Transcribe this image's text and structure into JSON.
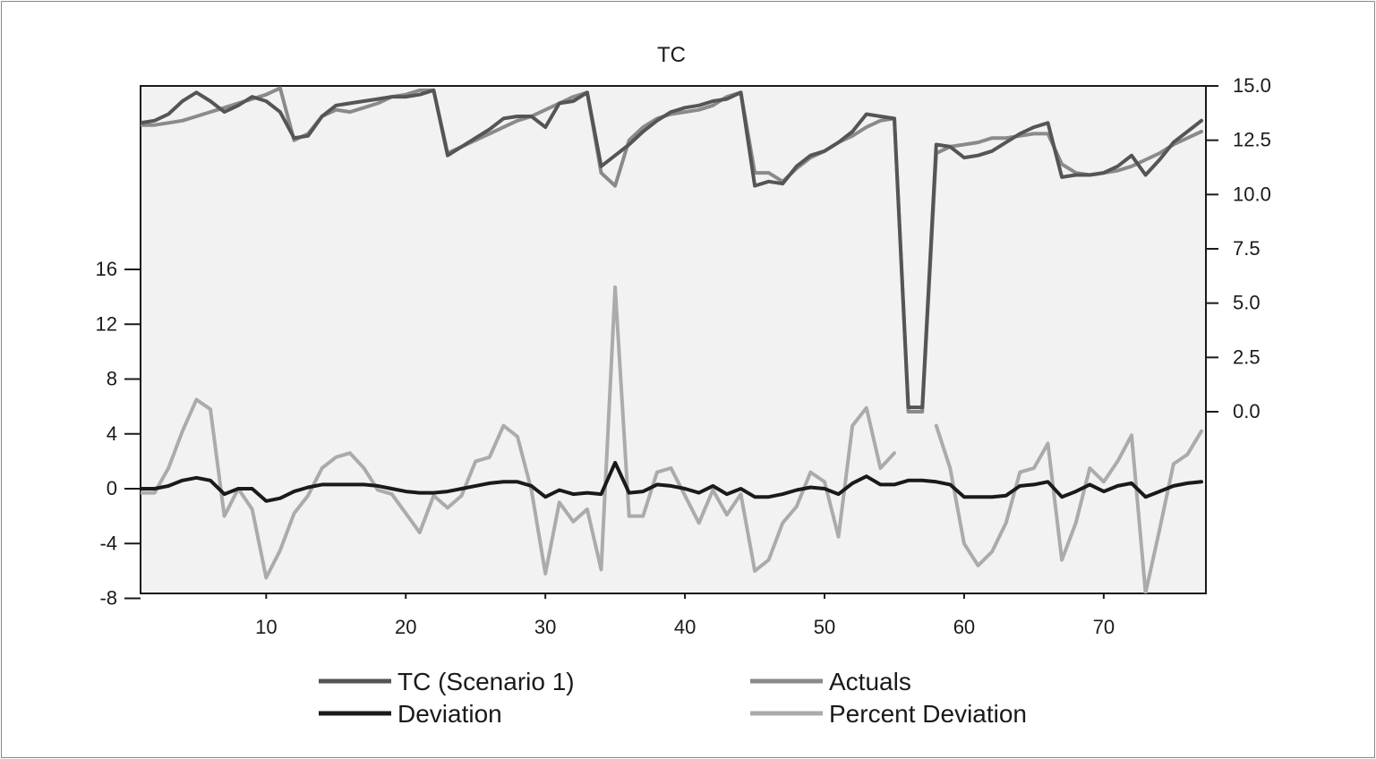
{
  "chart_data": {
    "type": "line",
    "title": "TC",
    "x_ticks": [
      10,
      20,
      30,
      40,
      50,
      60,
      70
    ],
    "x_range": [
      1,
      77
    ],
    "left_axis": {
      "ticks": [
        16,
        12,
        8,
        4,
        0,
        -4,
        -8
      ],
      "range": [
        -8,
        16
      ]
    },
    "right_axis": {
      "ticks": [
        "15.0",
        "12.5",
        "10.0",
        "7.5",
        "5.0",
        "2.5",
        "0.0"
      ],
      "range": [
        0,
        15
      ]
    },
    "legend": {
      "placement": "bottom",
      "items": [
        {
          "series": "tc",
          "label": "TC (Scenario 1)"
        },
        {
          "series": "actuals",
          "label": "Actuals"
        },
        {
          "series": "deviation",
          "label": "Deviation"
        },
        {
          "series": "pct",
          "label": "Percent Deviation"
        }
      ]
    },
    "series": [
      {
        "id": "tc",
        "name": "TC (Scenario 1)",
        "axis": "right",
        "color": "#555555",
        "width": 4,
        "x": [
          1,
          2,
          3,
          4,
          5,
          6,
          7,
          8,
          9,
          10,
          11,
          12,
          13,
          14,
          15,
          16,
          17,
          18,
          19,
          20,
          21,
          22,
          23,
          24,
          25,
          26,
          27,
          28,
          29,
          30,
          31,
          32,
          33,
          34,
          35,
          36,
          37,
          38,
          39,
          40,
          41,
          42,
          43,
          44,
          45,
          46,
          47,
          48,
          49,
          50,
          51,
          52,
          53,
          54,
          55,
          56,
          57,
          58,
          59,
          60,
          61,
          62,
          63,
          64,
          65,
          66,
          67,
          68,
          69,
          70,
          71,
          72,
          73,
          74,
          75,
          76,
          77
        ],
        "y": [
          13.3,
          13.4,
          13.7,
          14.3,
          14.7,
          14.3,
          13.8,
          14.1,
          14.5,
          14.3,
          13.8,
          12.6,
          12.7,
          13.6,
          14.1,
          14.2,
          14.3,
          14.4,
          14.5,
          14.5,
          14.6,
          14.8,
          11.8,
          12.2,
          12.6,
          13.0,
          13.5,
          13.6,
          13.6,
          13.1,
          14.2,
          14.3,
          14.7,
          11.3,
          11.8,
          12.3,
          12.9,
          13.4,
          13.8,
          14.0,
          14.1,
          14.3,
          14.4,
          14.7,
          10.4,
          10.6,
          10.5,
          11.3,
          11.8,
          12.0,
          12.4,
          12.9,
          13.7,
          13.6,
          13.5,
          0.2,
          0.2,
          12.3,
          12.2,
          11.7,
          11.8,
          12.0,
          12.4,
          12.8,
          13.1,
          13.3,
          10.8,
          10.9,
          10.9,
          11.0,
          11.3,
          11.8,
          10.9,
          11.6,
          12.4,
          12.9,
          13.4
        ]
      },
      {
        "id": "actuals",
        "name": "Actuals",
        "axis": "right",
        "color": "#8a8a8a",
        "width": 4,
        "x": [
          1,
          2,
          3,
          4,
          5,
          6,
          7,
          8,
          9,
          10,
          11,
          12,
          13,
          14,
          15,
          16,
          17,
          18,
          19,
          20,
          21,
          22,
          23,
          24,
          25,
          26,
          27,
          28,
          29,
          30,
          31,
          32,
          33,
          34,
          35,
          36,
          37,
          38,
          39,
          40,
          41,
          42,
          43,
          44,
          45,
          46,
          47,
          48,
          49,
          50,
          51,
          52,
          53,
          54,
          55,
          56,
          57,
          58,
          59,
          60,
          61,
          62,
          63,
          64,
          65,
          66,
          67,
          68,
          69,
          70,
          71,
          72,
          73,
          74,
          75,
          76,
          77
        ],
        "y": [
          13.2,
          13.2,
          13.3,
          13.4,
          13.6,
          13.8,
          14.0,
          14.2,
          14.4,
          14.6,
          14.9,
          12.5,
          12.8,
          13.6,
          13.9,
          13.8,
          14.0,
          14.2,
          14.5,
          14.6,
          14.8,
          14.8,
          11.9,
          12.2,
          12.5,
          12.8,
          13.1,
          13.4,
          13.6,
          13.9,
          14.2,
          14.5,
          14.7,
          11.0,
          10.4,
          12.5,
          13.1,
          13.5,
          13.7,
          13.8,
          13.9,
          14.1,
          14.5,
          14.7,
          11.0,
          11.0,
          10.6,
          11.2,
          11.7,
          12.0,
          12.4,
          12.7,
          13.1,
          13.4,
          13.5,
          0.0,
          0.0,
          11.9,
          12.2,
          12.3,
          12.4,
          12.6,
          12.6,
          12.7,
          12.8,
          12.8,
          11.4,
          11.0,
          10.9,
          11.0,
          11.1,
          11.3,
          11.6,
          11.9,
          12.3,
          12.6,
          12.9
        ]
      },
      {
        "id": "deviation",
        "name": "Deviation",
        "axis": "left",
        "color": "#1a1a1a",
        "width": 4,
        "x": [
          1,
          2,
          3,
          4,
          5,
          6,
          7,
          8,
          9,
          10,
          11,
          12,
          13,
          14,
          15,
          16,
          17,
          18,
          19,
          20,
          21,
          22,
          23,
          24,
          25,
          26,
          27,
          28,
          29,
          30,
          31,
          32,
          33,
          34,
          35,
          36,
          37,
          38,
          39,
          40,
          41,
          42,
          43,
          44,
          45,
          46,
          47,
          48,
          49,
          50,
          51,
          52,
          53,
          54,
          55,
          56,
          57,
          58,
          59,
          60,
          61,
          62,
          63,
          64,
          65,
          66,
          67,
          68,
          69,
          70,
          71,
          72,
          73,
          74,
          75,
          76,
          77
        ],
        "y": [
          0,
          0,
          0.2,
          0.6,
          0.8,
          0.6,
          -0.4,
          0,
          0,
          -0.9,
          -0.7,
          -0.2,
          0.1,
          0.3,
          0.3,
          0.3,
          0.3,
          0.2,
          0,
          -0.2,
          -0.3,
          -0.3,
          -0.2,
          0,
          0.2,
          0.4,
          0.5,
          0.5,
          0.2,
          -0.6,
          -0.1,
          -0.4,
          -0.3,
          -0.4,
          1.9,
          -0.3,
          -0.2,
          0.3,
          0.2,
          0,
          -0.3,
          0.2,
          -0.4,
          0,
          -0.6,
          -0.6,
          -0.4,
          -0.1,
          0.1,
          0,
          -0.4,
          0.4,
          0.9,
          0.3,
          0.3,
          0.6,
          0.6,
          0.5,
          0.3,
          -0.6,
          -0.6,
          -0.6,
          -0.5,
          0.2,
          0.3,
          0.5,
          -0.6,
          -0.2,
          0.3,
          -0.2,
          0.2,
          0.4,
          -0.6,
          -0.2,
          0.2,
          0.4,
          0.5
        ]
      },
      {
        "id": "pct",
        "name": "Percent Deviation",
        "axis": "left",
        "color": "#ababab",
        "width": 4,
        "segments": [
          {
            "x": [
              1,
              2,
              3,
              4,
              5,
              6,
              7,
              8,
              9,
              10,
              11,
              12,
              13,
              14,
              15,
              16,
              17,
              18,
              19,
              20,
              21,
              22,
              23,
              24,
              25,
              26,
              27,
              28,
              29,
              30,
              31,
              32,
              33,
              34,
              35,
              36,
              37,
              38,
              39,
              40,
              41,
              42,
              43,
              44,
              45,
              46,
              47,
              48,
              49,
              50,
              51,
              52,
              53,
              54,
              55
            ],
            "y": [
              -0.3,
              -0.3,
              1.5,
              4.2,
              6.5,
              5.8,
              -2.0,
              0,
              -1.5,
              -6.5,
              -4.5,
              -1.8,
              -0.5,
              1.5,
              2.3,
              2.6,
              1.5,
              -0.1,
              -0.4,
              -1.8,
              -3.2,
              -0.5,
              -1.4,
              -0.5,
              2.0,
              2.3,
              4.6,
              3.8,
              -0.1,
              -6.2,
              -1.0,
              -2.4,
              -1.5,
              -5.9,
              14.7,
              -2.0,
              -2.0,
              1.2,
              1.5,
              -0.5,
              -2.5,
              -0.1,
              -1.9,
              -0.4,
              -6.0,
              -5.2,
              -2.5,
              -1.3,
              1.2,
              0.5,
              -3.5,
              4.6,
              5.9,
              1.5,
              2.6
            ]
          },
          {
            "x": [
              58,
              59,
              60,
              61,
              62,
              63,
              64,
              65,
              66,
              67,
              68,
              69,
              70,
              71,
              72,
              73,
              74,
              75,
              76,
              77
            ],
            "y": [
              4.6,
              1.5,
              -4.0,
              -5.6,
              -4.6,
              -2.5,
              1.2,
              1.5,
              3.3,
              -5.2,
              -2.5,
              1.5,
              0.5,
              2.0,
              3.9,
              -7.6,
              -3.0,
              1.8,
              2.5,
              4.2
            ]
          }
        ]
      }
    ]
  }
}
